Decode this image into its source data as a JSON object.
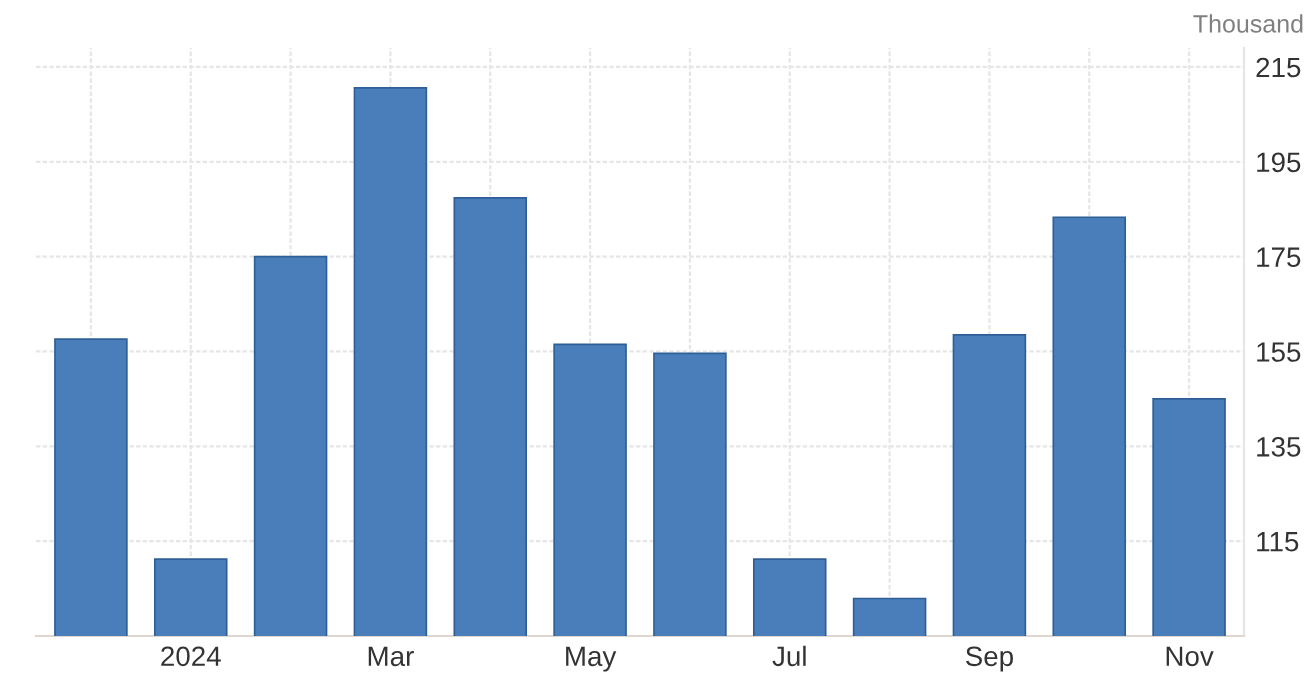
{
  "chart_data": {
    "type": "bar",
    "ylabel": "Thousand",
    "categories": [
      null,
      "2024",
      null,
      "Mar",
      null,
      "May",
      null,
      "Jul",
      null,
      "Sep",
      null,
      "Nov"
    ],
    "values": [
      157.6,
      111.2,
      175,
      210.6,
      187.4,
      156.5,
      154.6,
      111.2,
      102.9,
      158.5,
      183.3,
      145
    ],
    "color": "#4a7ebb",
    "ylim": [
      95,
      219
    ],
    "yticks": [
      115,
      135,
      155,
      175,
      195,
      215
    ],
    "grid": true
  }
}
